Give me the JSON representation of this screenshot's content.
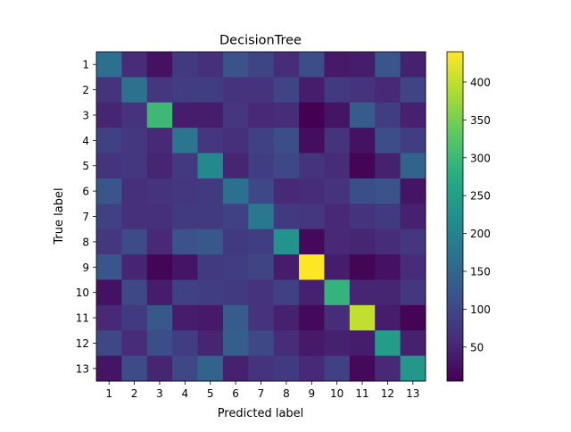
{
  "chart_data": {
    "type": "heatmap",
    "title": "DecisionTree",
    "xlabel": "Predicted label",
    "ylabel": "True label",
    "x_categories": [
      "1",
      "2",
      "3",
      "4",
      "5",
      "6",
      "7",
      "8",
      "9",
      "10",
      "11",
      "12",
      "13"
    ],
    "y_categories": [
      "1",
      "2",
      "3",
      "4",
      "5",
      "6",
      "7",
      "8",
      "9",
      "10",
      "11",
      "12",
      "13"
    ],
    "colormap": "viridis",
    "color_range": [
      5,
      440
    ],
    "colorbar_ticks": [
      50,
      100,
      150,
      200,
      250,
      300,
      350,
      400
    ],
    "values": [
      [
        165,
        60,
        25,
        80,
        65,
        115,
        95,
        60,
        110,
        35,
        40,
        120,
        45
      ],
      [
        70,
        170,
        75,
        85,
        85,
        70,
        70,
        95,
        40,
        80,
        70,
        55,
        95
      ],
      [
        50,
        70,
        300,
        40,
        40,
        75,
        55,
        60,
        5,
        30,
        130,
        85,
        45
      ],
      [
        90,
        75,
        55,
        175,
        75,
        65,
        90,
        110,
        20,
        70,
        25,
        110,
        85
      ],
      [
        70,
        75,
        50,
        80,
        210,
        50,
        85,
        100,
        70,
        60,
        10,
        45,
        145
      ],
      [
        120,
        65,
        70,
        75,
        80,
        165,
        100,
        55,
        60,
        70,
        110,
        115,
        30
      ],
      [
        90,
        65,
        65,
        80,
        80,
        90,
        180,
        80,
        75,
        55,
        70,
        80,
        45
      ],
      [
        75,
        105,
        55,
        115,
        125,
        80,
        85,
        230,
        15,
        55,
        50,
        60,
        75
      ],
      [
        120,
        50,
        10,
        30,
        80,
        85,
        95,
        40,
        440,
        40,
        10,
        25,
        60
      ],
      [
        25,
        100,
        40,
        90,
        85,
        80,
        70,
        90,
        45,
        290,
        50,
        50,
        75
      ],
      [
        55,
        80,
        125,
        40,
        35,
        130,
        70,
        45,
        15,
        60,
        400,
        40,
        10
      ],
      [
        100,
        60,
        110,
        85,
        50,
        135,
        100,
        60,
        35,
        45,
        40,
        245,
        45
      ],
      [
        30,
        105,
        50,
        100,
        145,
        45,
        70,
        80,
        55,
        90,
        15,
        55,
        235
      ]
    ],
    "grid": false
  }
}
